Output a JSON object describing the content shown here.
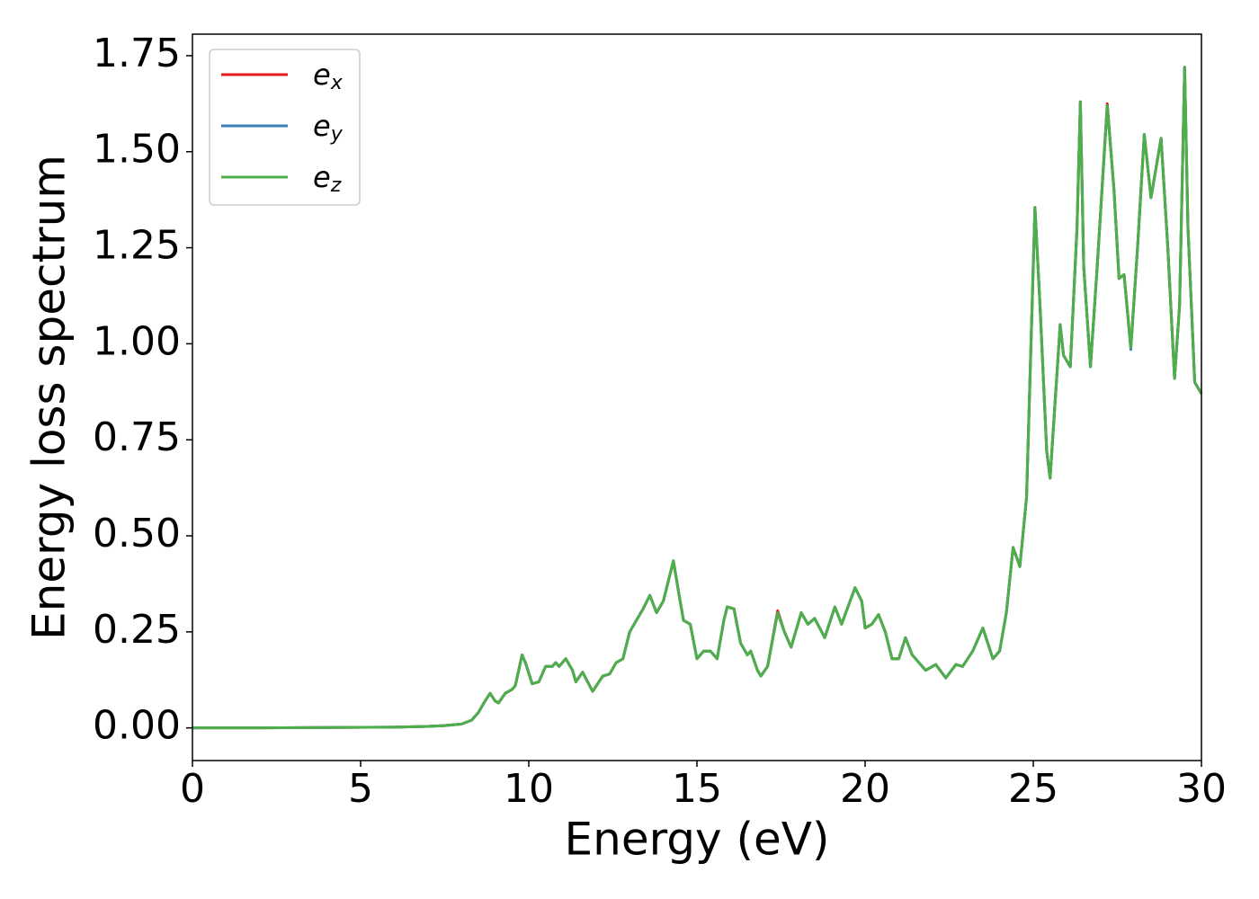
{
  "chart_data": {
    "type": "line",
    "xlabel": "Energy (eV)",
    "ylabel": "Energy loss spectrum",
    "x": [
      0,
      2,
      4,
      6,
      7,
      7.5,
      8,
      8.3,
      8.5,
      8.7,
      8.85,
      9.0,
      9.1,
      9.3,
      9.5,
      9.6,
      9.8,
      9.9,
      10.1,
      10.3,
      10.5,
      10.7,
      10.8,
      10.9,
      11.1,
      11.3,
      11.4,
      11.6,
      11.9,
      12.2,
      12.4,
      12.6,
      12.8,
      13.0,
      13.2,
      13.4,
      13.6,
      13.8,
      14.0,
      14.3,
      14.5,
      14.6,
      14.8,
      15.0,
      15.2,
      15.4,
      15.6,
      15.8,
      15.9,
      16.1,
      16.3,
      16.5,
      16.6,
      16.8,
      16.9,
      17.1,
      17.4,
      17.6,
      17.8,
      18.1,
      18.3,
      18.5,
      18.8,
      19.1,
      19.3,
      19.7,
      19.9,
      20.0,
      20.2,
      20.4,
      20.6,
      20.8,
      21.0,
      21.2,
      21.4,
      21.8,
      22.1,
      22.4,
      22.7,
      22.9,
      23.2,
      23.5,
      23.8,
      24.0,
      24.2,
      24.4,
      24.6,
      24.8,
      25.05,
      25.2,
      25.4,
      25.5,
      25.65,
      25.8,
      25.9,
      26.1,
      26.3,
      26.4,
      26.5,
      26.7,
      26.9,
      27.2,
      27.4,
      27.55,
      27.7,
      27.9,
      28.1,
      28.3,
      28.5,
      28.8,
      29.0,
      29.2,
      29.35,
      29.5,
      29.6,
      29.8,
      30
    ],
    "series": [
      {
        "name": "e_x",
        "color": "#e41a1c",
        "values": [
          0,
          0,
          0.001,
          0.002,
          0.004,
          0.006,
          0.01,
          0.02,
          0.04,
          0.07,
          0.09,
          0.07,
          0.065,
          0.09,
          0.1,
          0.11,
          0.19,
          0.17,
          0.115,
          0.12,
          0.16,
          0.16,
          0.17,
          0.16,
          0.18,
          0.15,
          0.12,
          0.145,
          0.095,
          0.135,
          0.14,
          0.17,
          0.18,
          0.25,
          0.28,
          0.31,
          0.345,
          0.3,
          0.33,
          0.435,
          0.33,
          0.28,
          0.27,
          0.18,
          0.2,
          0.2,
          0.18,
          0.28,
          0.315,
          0.31,
          0.22,
          0.19,
          0.2,
          0.15,
          0.135,
          0.16,
          0.305,
          0.25,
          0.21,
          0.3,
          0.27,
          0.285,
          0.235,
          0.315,
          0.27,
          0.365,
          0.33,
          0.26,
          0.27,
          0.295,
          0.25,
          0.18,
          0.18,
          0.235,
          0.19,
          0.15,
          0.165,
          0.13,
          0.165,
          0.16,
          0.2,
          0.26,
          0.18,
          0.2,
          0.3,
          0.47,
          0.42,
          0.6,
          1.355,
          1.1,
          0.72,
          0.65,
          0.85,
          1.05,
          0.97,
          0.94,
          1.3,
          1.63,
          1.2,
          0.94,
          1.2,
          1.625,
          1.4,
          1.17,
          1.18,
          0.99,
          1.25,
          1.545,
          1.38,
          1.535,
          1.25,
          0.91,
          1.1,
          1.72,
          1.3,
          0.9,
          0.87
        ]
      },
      {
        "name": "e_y",
        "color": "#377eb8",
        "values": [
          0,
          0,
          0.001,
          0.002,
          0.004,
          0.006,
          0.01,
          0.02,
          0.04,
          0.07,
          0.09,
          0.07,
          0.065,
          0.09,
          0.1,
          0.11,
          0.19,
          0.17,
          0.115,
          0.12,
          0.16,
          0.16,
          0.17,
          0.16,
          0.18,
          0.15,
          0.12,
          0.145,
          0.095,
          0.135,
          0.14,
          0.17,
          0.18,
          0.25,
          0.28,
          0.31,
          0.345,
          0.3,
          0.33,
          0.435,
          0.33,
          0.28,
          0.27,
          0.18,
          0.2,
          0.2,
          0.18,
          0.28,
          0.315,
          0.31,
          0.22,
          0.19,
          0.2,
          0.15,
          0.135,
          0.16,
          0.3,
          0.25,
          0.21,
          0.3,
          0.27,
          0.285,
          0.235,
          0.315,
          0.27,
          0.365,
          0.33,
          0.26,
          0.27,
          0.295,
          0.25,
          0.18,
          0.18,
          0.235,
          0.19,
          0.15,
          0.165,
          0.13,
          0.165,
          0.16,
          0.2,
          0.26,
          0.18,
          0.2,
          0.3,
          0.47,
          0.42,
          0.6,
          1.355,
          1.1,
          0.72,
          0.65,
          0.85,
          1.05,
          0.97,
          0.94,
          1.3,
          1.63,
          1.2,
          0.94,
          1.2,
          1.62,
          1.4,
          1.17,
          1.18,
          0.985,
          1.25,
          1.545,
          1.38,
          1.535,
          1.25,
          0.91,
          1.1,
          1.72,
          1.3,
          0.9,
          0.87
        ]
      },
      {
        "name": "e_z",
        "color": "#4daf4a",
        "values": [
          0,
          0,
          0.001,
          0.002,
          0.004,
          0.006,
          0.01,
          0.02,
          0.04,
          0.07,
          0.09,
          0.07,
          0.065,
          0.09,
          0.1,
          0.11,
          0.19,
          0.17,
          0.115,
          0.12,
          0.16,
          0.16,
          0.17,
          0.16,
          0.18,
          0.15,
          0.12,
          0.145,
          0.095,
          0.135,
          0.14,
          0.17,
          0.18,
          0.25,
          0.28,
          0.31,
          0.345,
          0.3,
          0.33,
          0.435,
          0.33,
          0.28,
          0.27,
          0.18,
          0.2,
          0.2,
          0.18,
          0.28,
          0.315,
          0.31,
          0.22,
          0.19,
          0.2,
          0.15,
          0.135,
          0.16,
          0.3,
          0.25,
          0.21,
          0.3,
          0.27,
          0.285,
          0.235,
          0.315,
          0.27,
          0.365,
          0.33,
          0.26,
          0.27,
          0.295,
          0.25,
          0.18,
          0.18,
          0.235,
          0.19,
          0.15,
          0.165,
          0.13,
          0.165,
          0.16,
          0.2,
          0.26,
          0.18,
          0.2,
          0.3,
          0.47,
          0.42,
          0.6,
          1.355,
          1.1,
          0.72,
          0.65,
          0.85,
          1.05,
          0.97,
          0.94,
          1.3,
          1.63,
          1.2,
          0.94,
          1.2,
          1.62,
          1.4,
          1.17,
          1.18,
          0.99,
          1.25,
          1.545,
          1.38,
          1.535,
          1.25,
          0.91,
          1.1,
          1.72,
          1.3,
          0.9,
          0.87
        ]
      }
    ],
    "xlim": [
      0,
      30
    ],
    "xticks": [
      0,
      5,
      10,
      15,
      20,
      25,
      30
    ],
    "ylim": [
      -0.085,
      1.806
    ],
    "yticks": [
      {
        "value": 0,
        "label": "0.00"
      },
      {
        "value": 0.25,
        "label": "0.25"
      },
      {
        "value": 0.5,
        "label": "0.50"
      },
      {
        "value": 0.75,
        "label": "0.75"
      },
      {
        "value": 1,
        "label": "1.00"
      },
      {
        "value": 1.25,
        "label": "1.25"
      },
      {
        "value": 1.5,
        "label": "1.50"
      },
      {
        "value": 1.75,
        "label": "1.75"
      }
    ],
    "grid": false,
    "legend": "upper left"
  }
}
